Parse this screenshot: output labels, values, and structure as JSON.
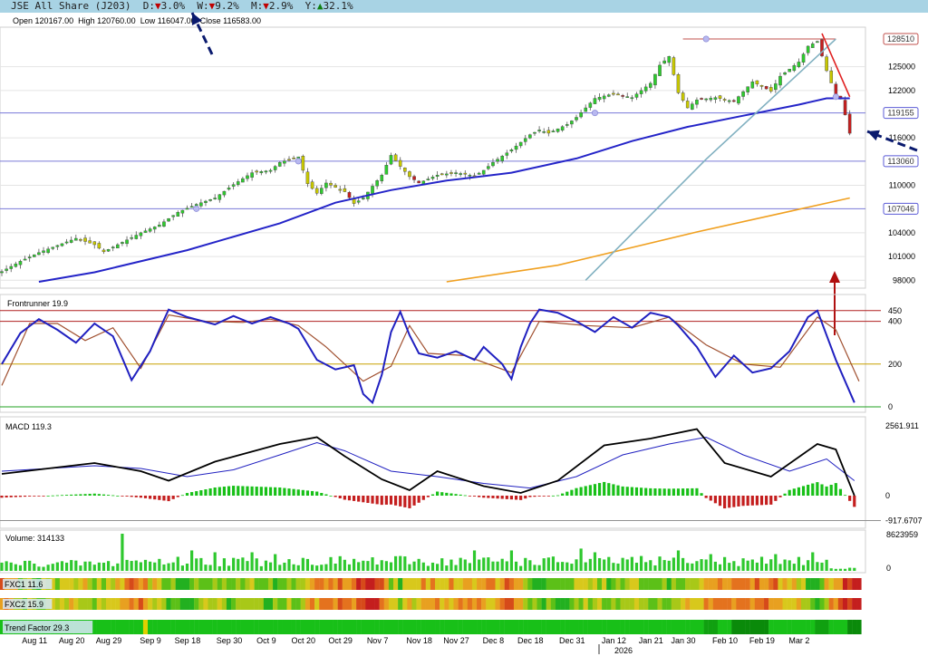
{
  "header": {
    "instrument": "JSE All Share (J203)",
    "day_label": "D:",
    "day_arrow": "▼",
    "day_value": "3.0%",
    "week_label": "W:",
    "week_arrow": "▼",
    "week_value": "9.2%",
    "month_label": "M:",
    "month_arrow": "▼",
    "month_value": "2.9%",
    "year_label": "Y:",
    "year_arrow": "▲",
    "year_value": "32.1%"
  },
  "ohlc": {
    "open_label": "Open",
    "open": "120167.00",
    "high_label": "High",
    "high": "120760.00",
    "low_label": "Low",
    "low": "116047.00",
    "close_label": "Close",
    "close": "116583.00"
  },
  "chart_data": [
    {
      "type": "candlestick",
      "panel": "price",
      "ylim": [
        97000,
        130000
      ],
      "y_ticks": [
        98000,
        101000,
        104000,
        110000,
        116000,
        122000,
        125000
      ],
      "y_ticks_labels": [
        "98000",
        "101000",
        "104000",
        "110000",
        "116000",
        "122000",
        "125000"
      ],
      "price_badges": [
        {
          "label": "128510",
          "value": 128510,
          "color": "#c0504d"
        },
        {
          "label": "119155",
          "value": 119155,
          "color": "#5b5bd6"
        },
        {
          "label": "113060",
          "value": 113060,
          "color": "#5b5bd6"
        },
        {
          "label": "107046",
          "value": 107046,
          "color": "#5b5bd6"
        }
      ],
      "horizontal_lines": [
        128510,
        119155,
        113060,
        107046
      ],
      "x_labels": [
        "Aug 11",
        "Aug 20",
        "Aug 29",
        "Sep 9",
        "Sep 18",
        "Sep 30",
        "Oct 9",
        "Oct 20",
        "Oct 29",
        "Nov 7",
        "Nov 18",
        "Nov 27",
        "Dec 8",
        "Dec 18",
        "Dec 31",
        "Jan 12",
        "Jan 21",
        "Jan 30",
        "Feb 10",
        "Feb 19",
        "Mar 2"
      ],
      "year_label": "2026",
      "close_path": [
        [
          0,
          99100
        ],
        [
          4,
          100400
        ],
        [
          8,
          101500
        ],
        [
          12,
          102400
        ],
        [
          16,
          103300
        ],
        [
          20,
          102500
        ],
        [
          22,
          101600
        ],
        [
          26,
          102800
        ],
        [
          30,
          104000
        ],
        [
          34,
          105000
        ],
        [
          38,
          106600
        ],
        [
          42,
          107600
        ],
        [
          46,
          108400
        ],
        [
          50,
          110100
        ],
        [
          54,
          111600
        ],
        [
          58,
          111900
        ],
        [
          60,
          112900
        ],
        [
          64,
          113600
        ],
        [
          66,
          110200
        ],
        [
          68,
          109000
        ],
        [
          70,
          110300
        ],
        [
          74,
          109200
        ],
        [
          76,
          107700
        ],
        [
          78,
          108400
        ],
        [
          80,
          109900
        ],
        [
          82,
          111300
        ],
        [
          84,
          113800
        ],
        [
          86,
          112400
        ],
        [
          88,
          111100
        ],
        [
          90,
          110300
        ],
        [
          94,
          111300
        ],
        [
          98,
          111600
        ],
        [
          102,
          111200
        ],
        [
          104,
          111900
        ],
        [
          106,
          112900
        ],
        [
          110,
          114500
        ],
        [
          114,
          116400
        ],
        [
          116,
          117000
        ],
        [
          118,
          116600
        ],
        [
          122,
          117700
        ],
        [
          124,
          118600
        ],
        [
          128,
          121000
        ],
        [
          132,
          121600
        ],
        [
          136,
          121100
        ],
        [
          140,
          122900
        ],
        [
          142,
          125200
        ],
        [
          144,
          126300
        ],
        [
          146,
          121700
        ],
        [
          148,
          119800
        ],
        [
          150,
          120800
        ],
        [
          154,
          121100
        ],
        [
          158,
          120600
        ],
        [
          162,
          123100
        ],
        [
          166,
          121900
        ],
        [
          168,
          123800
        ],
        [
          172,
          125600
        ],
        [
          174,
          127600
        ],
        [
          176,
          128200
        ],
        [
          178,
          124500
        ],
        [
          180,
          121400
        ],
        [
          181,
          120900
        ],
        [
          182,
          118900
        ],
        [
          183,
          116583
        ]
      ],
      "series": [
        {
          "name": "50-day MA",
          "color": "#2424c8",
          "values": [
            [
              8,
              97800
            ],
            [
              20,
              99000
            ],
            [
              40,
              101800
            ],
            [
              60,
              105200
            ],
            [
              72,
              107800
            ],
            [
              84,
              109400
            ],
            [
              96,
              110600
            ],
            [
              110,
              111600
            ],
            [
              124,
              113400
            ],
            [
              136,
              115600
            ],
            [
              148,
              117400
            ],
            [
              160,
              118800
            ],
            [
              172,
              120200
            ],
            [
              178,
              121000
            ],
            [
              183,
              121000
            ]
          ]
        },
        {
          "name": "200-day MA",
          "color": "#f0a020",
          "values": [
            [
              96,
              97800
            ],
            [
              120,
              99900
            ],
            [
              150,
              104100
            ],
            [
              170,
              106700
            ],
            [
              183,
              108400
            ]
          ]
        },
        {
          "name": "trend channel line",
          "color": "#80b0c0",
          "values": [
            [
              126,
              98000
            ],
            [
              152,
              113300
            ],
            [
              180,
              128500
            ]
          ]
        }
      ]
    },
    {
      "type": "line",
      "panel": "frontrunner",
      "title": "Frontrunner 19.9",
      "ylim": [
        0,
        500
      ],
      "y_ticks": [
        0,
        200,
        400,
        450
      ],
      "y_ticks_labels": [
        "0",
        "200",
        "400",
        "450"
      ],
      "levels": [
        {
          "value": 450,
          "color": "#b02020"
        },
        {
          "value": 400,
          "color": "#b02020"
        },
        {
          "value": 200,
          "color": "#c8a000"
        },
        {
          "value": 0,
          "color": "#20a020"
        }
      ],
      "series": [
        {
          "name": "Frontrunner",
          "color": "#2020c0",
          "values": [
            [
              0,
              200
            ],
            [
              4,
              345
            ],
            [
              8,
              410
            ],
            [
              12,
              360
            ],
            [
              16,
              300
            ],
            [
              20,
              390
            ],
            [
              24,
              330
            ],
            [
              28,
              125
            ],
            [
              32,
              260
            ],
            [
              34,
              360
            ],
            [
              36,
              455
            ],
            [
              40,
              420
            ],
            [
              46,
              385
            ],
            [
              50,
              425
            ],
            [
              54,
              390
            ],
            [
              58,
              420
            ],
            [
              62,
              390
            ],
            [
              64,
              365
            ],
            [
              68,
              220
            ],
            [
              72,
              175
            ],
            [
              76,
              195
            ],
            [
              78,
              60
            ],
            [
              80,
              20
            ],
            [
              82,
              150
            ],
            [
              84,
              350
            ],
            [
              86,
              445
            ],
            [
              88,
              335
            ],
            [
              90,
              250
            ],
            [
              94,
              230
            ],
            [
              98,
              260
            ],
            [
              102,
              220
            ],
            [
              104,
              280
            ],
            [
              108,
              200
            ],
            [
              110,
              130
            ],
            [
              112,
              280
            ],
            [
              114,
              390
            ],
            [
              116,
              455
            ],
            [
              120,
              440
            ],
            [
              124,
              400
            ],
            [
              128,
              350
            ],
            [
              132,
              420
            ],
            [
              136,
              370
            ],
            [
              140,
              440
            ],
            [
              144,
              420
            ],
            [
              146,
              380
            ],
            [
              150,
              280
            ],
            [
              154,
              140
            ],
            [
              158,
              240
            ],
            [
              162,
              160
            ],
            [
              166,
              180
            ],
            [
              170,
              260
            ],
            [
              174,
              420
            ],
            [
              176,
              450
            ],
            [
              180,
              220
            ],
            [
              184,
              20
            ]
          ]
        },
        {
          "name": "signal",
          "color": "#a05030",
          "values": [
            [
              0,
              100
            ],
            [
              6,
              390
            ],
            [
              12,
              390
            ],
            [
              18,
              310
            ],
            [
              24,
              370
            ],
            [
              30,
              180
            ],
            [
              36,
              430
            ],
            [
              44,
              400
            ],
            [
              52,
              395
            ],
            [
              58,
              410
            ],
            [
              64,
              380
            ],
            [
              70,
              280
            ],
            [
              78,
              120
            ],
            [
              84,
              190
            ],
            [
              88,
              380
            ],
            [
              92,
              250
            ],
            [
              100,
              240
            ],
            [
              110,
              160
            ],
            [
              116,
              400
            ],
            [
              126,
              380
            ],
            [
              136,
              370
            ],
            [
              144,
              420
            ],
            [
              152,
              290
            ],
            [
              160,
              200
            ],
            [
              168,
              185
            ],
            [
              176,
              420
            ],
            [
              180,
              360
            ],
            [
              185,
              120
            ]
          ]
        }
      ]
    },
    {
      "type": "bar+line",
      "panel": "macd",
      "title": "MACD 119.3",
      "ylim": [
        -1000,
        2700
      ],
      "y_ticks": [
        2561.911,
        0,
        -917.6707
      ],
      "y_ticks_labels": [
        "2561.911",
        "0",
        "-917.6707"
      ],
      "series": [
        {
          "name": "MACD",
          "color": "#000000",
          "values": [
            [
              0,
              800
            ],
            [
              10,
              1000
            ],
            [
              20,
              1200
            ],
            [
              30,
              900
            ],
            [
              36,
              550
            ],
            [
              46,
              1250
            ],
            [
              60,
              1900
            ],
            [
              68,
              2150
            ],
            [
              74,
              1450
            ],
            [
              82,
              600
            ],
            [
              88,
              200
            ],
            [
              94,
              900
            ],
            [
              104,
              350
            ],
            [
              112,
              100
            ],
            [
              120,
              550
            ],
            [
              130,
              1850
            ],
            [
              140,
              2100
            ],
            [
              150,
              2450
            ],
            [
              156,
              1200
            ],
            [
              166,
              700
            ],
            [
              176,
              1900
            ],
            [
              180,
              1700
            ],
            [
              184,
              0
            ]
          ]
        },
        {
          "name": "signal",
          "color": "#2020c0",
          "values": [
            [
              0,
              900
            ],
            [
              20,
              1100
            ],
            [
              30,
              1000
            ],
            [
              40,
              700
            ],
            [
              50,
              950
            ],
            [
              60,
              1500
            ],
            [
              68,
              1950
            ],
            [
              74,
              1650
            ],
            [
              84,
              900
            ],
            [
              94,
              700
            ],
            [
              104,
              450
            ],
            [
              114,
              280
            ],
            [
              124,
              700
            ],
            [
              134,
              1500
            ],
            [
              144,
              1900
            ],
            [
              152,
              2150
            ],
            [
              160,
              1500
            ],
            [
              170,
              900
            ],
            [
              178,
              1350
            ],
            [
              184,
              550
            ]
          ]
        }
      ]
    },
    {
      "type": "bar",
      "panel": "volume",
      "title": "Volume: 314133",
      "ylim": [
        0,
        8623959
      ],
      "y_ticks": [
        8623959,
        0
      ],
      "y_ticks_labels": [
        "8623959",
        "0"
      ]
    },
    {
      "type": "heatmap",
      "panel": "fxc1",
      "title": "FXC1 11.6"
    },
    {
      "type": "heatmap",
      "panel": "fxc2",
      "title": "FXC2 15.9"
    },
    {
      "type": "heatmap",
      "panel": "trend",
      "title": "Trend Factor 29.3"
    }
  ]
}
